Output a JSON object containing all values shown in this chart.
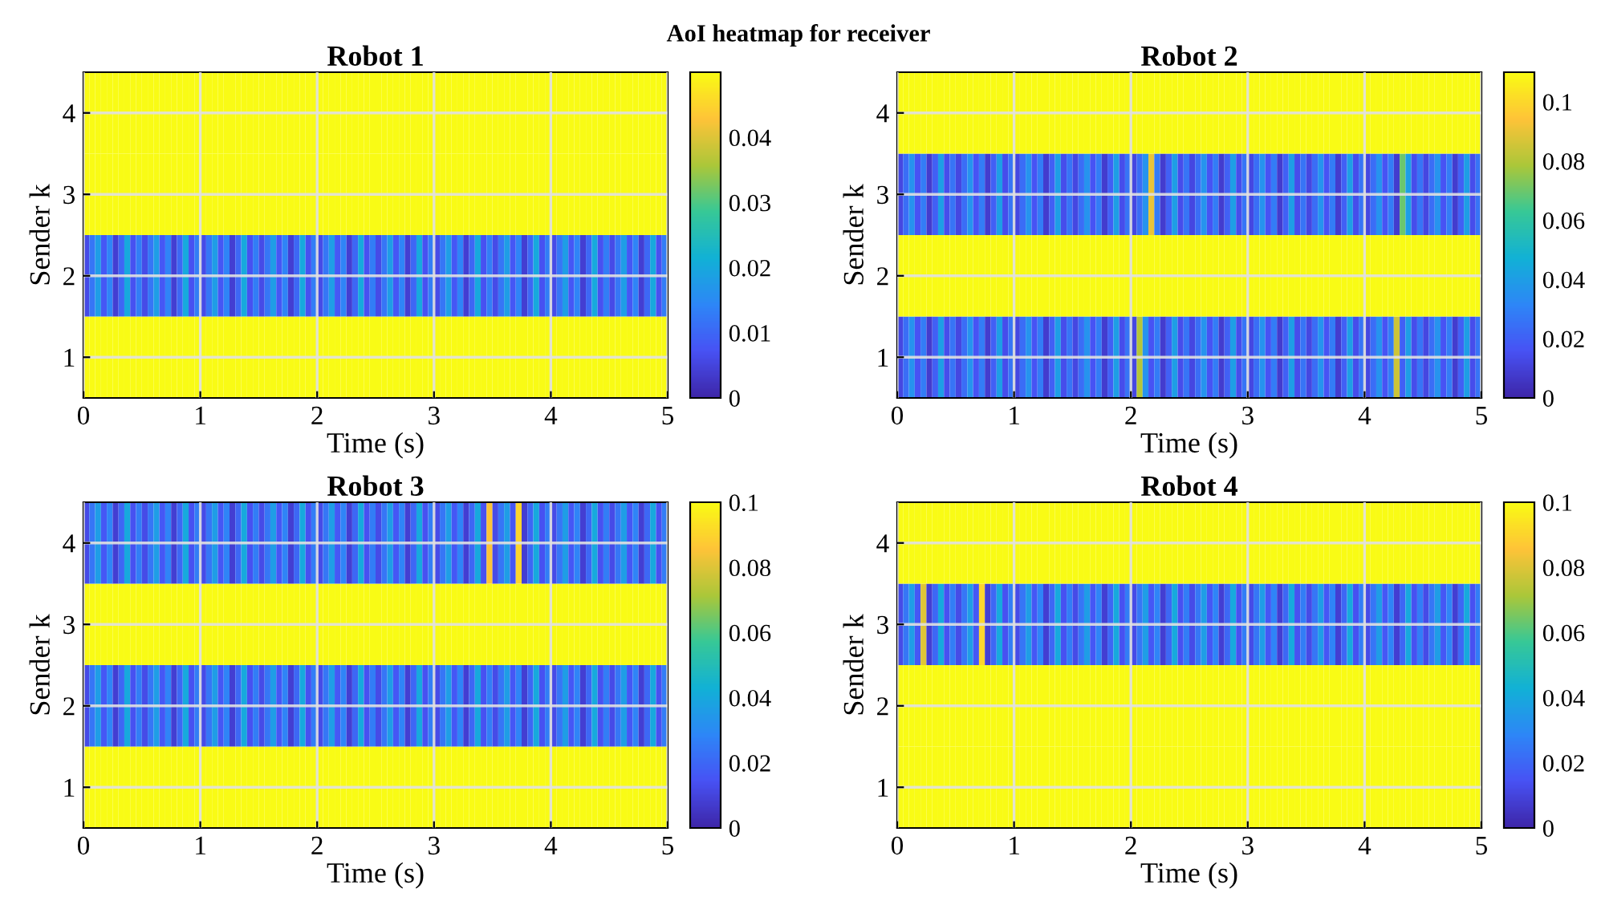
{
  "chart_data": [
    {
      "type": "heatmap",
      "annotations": [
        "AoI heatmap for receiver"
      ],
      "title": "Robot 1",
      "xlabel": "Time (s)",
      "ylabel": "Sender k",
      "xlim": [
        0,
        5
      ],
      "xticks": [
        0,
        1,
        2,
        3,
        4,
        5
      ],
      "grid": true,
      "clim": [
        0,
        0.05
      ],
      "cticks": [
        0,
        0.01,
        0.02,
        0.03,
        0.04
      ],
      "x": [
        0.025,
        0.075,
        0.125,
        0.175,
        0.225,
        0.275,
        0.325,
        0.375,
        0.425,
        0.475,
        0.525,
        0.575,
        0.625,
        0.675,
        0.725,
        0.775,
        0.825,
        0.875,
        0.925,
        0.975,
        1.025,
        1.075,
        1.125,
        1.175,
        1.225,
        1.275,
        1.325,
        1.375,
        1.425,
        1.475,
        1.525,
        1.575,
        1.625,
        1.675,
        1.725,
        1.775,
        1.825,
        1.875,
        1.925,
        1.975,
        2.025,
        2.075,
        2.125,
        2.175,
        2.225,
        2.275,
        2.325,
        2.375,
        2.425,
        2.475,
        2.525,
        2.575,
        2.625,
        2.675,
        2.725,
        2.775,
        2.825,
        2.875,
        2.925,
        2.975,
        3.025,
        3.075,
        3.125,
        3.175,
        3.225,
        3.275,
        3.325,
        3.375,
        3.425,
        3.475,
        3.525,
        3.575,
        3.625,
        3.675,
        3.725,
        3.775,
        3.825,
        3.875,
        3.925,
        3.975,
        4.025,
        4.075,
        4.125,
        4.175,
        4.225,
        4.275,
        4.325,
        4.375,
        4.425,
        4.475,
        4.525,
        4.575,
        4.625,
        4.675,
        4.725,
        4.775,
        4.825,
        4.875,
        4.925,
        4.975
      ],
      "y_categories": [
        "4",
        "3",
        "2",
        "1"
      ],
      "cells": [
        [
          0.05,
          0.05,
          0.05,
          0.05,
          0.05,
          0.05,
          0.05,
          0.05,
          0.05,
          0.05,
          0.05,
          0.05,
          0.05,
          0.05,
          0.05,
          0.05,
          0.05,
          0.05,
          0.05,
          0.05,
          0.05,
          0.05,
          0.05,
          0.05,
          0.05,
          0.05,
          0.05,
          0.05,
          0.05,
          0.05,
          0.05,
          0.05,
          0.05,
          0.05,
          0.05,
          0.05,
          0.05,
          0.05,
          0.05,
          0.05,
          0.05,
          0.05,
          0.05,
          0.05,
          0.05,
          0.05,
          0.05,
          0.05,
          0.05,
          0.05,
          0.05,
          0.05,
          0.05,
          0.05,
          0.05,
          0.05,
          0.05,
          0.05,
          0.05,
          0.05,
          0.05,
          0.05,
          0.05,
          0.05,
          0.05,
          0.05,
          0.05,
          0.05,
          0.05,
          0.05,
          0.05,
          0.05,
          0.05,
          0.05,
          0.05,
          0.05,
          0.05,
          0.05,
          0.05,
          0.05,
          0.05,
          0.05,
          0.05,
          0.05,
          0.05,
          0.05,
          0.05,
          0.05,
          0.05,
          0.05,
          0.05,
          0.05,
          0.05,
          0.05,
          0.05,
          0.05,
          0.05,
          0.05,
          0.05,
          0.05
        ],
        [
          0.05,
          0.05,
          0.05,
          0.05,
          0.05,
          0.05,
          0.05,
          0.05,
          0.05,
          0.05,
          0.05,
          0.05,
          0.05,
          0.05,
          0.05,
          0.05,
          0.05,
          0.05,
          0.05,
          0.05,
          0.05,
          0.05,
          0.05,
          0.05,
          0.05,
          0.05,
          0.05,
          0.05,
          0.05,
          0.05,
          0.05,
          0.05,
          0.05,
          0.05,
          0.05,
          0.05,
          0.05,
          0.05,
          0.05,
          0.05,
          0.05,
          0.05,
          0.05,
          0.05,
          0.05,
          0.05,
          0.05,
          0.05,
          0.05,
          0.05,
          0.05,
          0.05,
          0.05,
          0.05,
          0.05,
          0.05,
          0.05,
          0.05,
          0.05,
          0.05,
          0.05,
          0.05,
          0.05,
          0.05,
          0.05,
          0.05,
          0.05,
          0.05,
          0.05,
          0.05,
          0.05,
          0.05,
          0.05,
          0.05,
          0.05,
          0.05,
          0.05,
          0.05,
          0.05,
          0.05,
          0.05,
          0.05,
          0.05,
          0.05,
          0.05,
          0.05,
          0.05,
          0.05,
          0.05,
          0.05,
          0.05,
          0.05,
          0.05,
          0.05,
          0.05,
          0.05,
          0.05,
          0.05,
          0.05,
          0.05
        ],
        [
          0.006,
          0.012,
          0.018,
          0.008,
          0.014,
          0.004,
          0.01,
          0.02,
          0.007,
          0.013,
          0.006,
          0.012,
          0.018,
          0.008,
          0.014,
          0.004,
          0.01,
          0.02,
          0.007,
          0.013,
          0.006,
          0.012,
          0.018,
          0.008,
          0.014,
          0.004,
          0.01,
          0.02,
          0.007,
          0.013,
          0.006,
          0.012,
          0.018,
          0.008,
          0.014,
          0.004,
          0.01,
          0.02,
          0.007,
          0.013,
          0.006,
          0.012,
          0.018,
          0.008,
          0.014,
          0.004,
          0.01,
          0.02,
          0.007,
          0.013,
          0.006,
          0.012,
          0.018,
          0.008,
          0.014,
          0.004,
          0.01,
          0.02,
          0.007,
          0.013,
          0.006,
          0.012,
          0.018,
          0.008,
          0.014,
          0.004,
          0.01,
          0.02,
          0.007,
          0.013,
          0.006,
          0.012,
          0.018,
          0.008,
          0.014,
          0.004,
          0.01,
          0.02,
          0.007,
          0.013,
          0.006,
          0.012,
          0.018,
          0.008,
          0.014,
          0.004,
          0.01,
          0.02,
          0.007,
          0.013,
          0.006,
          0.012,
          0.018,
          0.008,
          0.014,
          0.004,
          0.01,
          0.02,
          0.007,
          0.013
        ],
        [
          0.05,
          0.05,
          0.05,
          0.05,
          0.05,
          0.05,
          0.05,
          0.05,
          0.05,
          0.05,
          0.05,
          0.05,
          0.05,
          0.05,
          0.05,
          0.05,
          0.05,
          0.05,
          0.05,
          0.05,
          0.05,
          0.05,
          0.05,
          0.05,
          0.05,
          0.05,
          0.05,
          0.05,
          0.05,
          0.05,
          0.05,
          0.05,
          0.05,
          0.05,
          0.05,
          0.05,
          0.05,
          0.05,
          0.05,
          0.05,
          0.05,
          0.05,
          0.05,
          0.05,
          0.05,
          0.05,
          0.05,
          0.05,
          0.05,
          0.05,
          0.05,
          0.05,
          0.05,
          0.05,
          0.05,
          0.05,
          0.05,
          0.05,
          0.05,
          0.05,
          0.05,
          0.05,
          0.05,
          0.05,
          0.05,
          0.05,
          0.05,
          0.05,
          0.05,
          0.05,
          0.05,
          0.05,
          0.05,
          0.05,
          0.05,
          0.05,
          0.05,
          0.05,
          0.05,
          0.05,
          0.05,
          0.05,
          0.05,
          0.05,
          0.05,
          0.05,
          0.05,
          0.05,
          0.05,
          0.05,
          0.05,
          0.05,
          0.05,
          0.05,
          0.05,
          0.05,
          0.05,
          0.05,
          0.05,
          0.05
        ]
      ]
    },
    {
      "type": "heatmap",
      "title": "Robot 2",
      "xlabel": "Time (s)",
      "ylabel": "Sender k",
      "xlim": [
        0,
        5
      ],
      "xticks": [
        0,
        1,
        2,
        3,
        4,
        5
      ],
      "grid": true,
      "clim": [
        0,
        0.11
      ],
      "cticks": [
        0,
        0.02,
        0.04,
        0.06,
        0.08,
        0.1
      ],
      "x": [
        0.025,
        0.075,
        0.125,
        0.175,
        0.225,
        0.275,
        0.325,
        0.375,
        0.425,
        0.475,
        0.525,
        0.575,
        0.625,
        0.675,
        0.725,
        0.775,
        0.825,
        0.875,
        0.925,
        0.975,
        1.025,
        1.075,
        1.125,
        1.175,
        1.225,
        1.275,
        1.325,
        1.375,
        1.425,
        1.475,
        1.525,
        1.575,
        1.625,
        1.675,
        1.725,
        1.775,
        1.825,
        1.875,
        1.925,
        1.975,
        2.025,
        2.075,
        2.125,
        2.175,
        2.225,
        2.275,
        2.325,
        2.375,
        2.425,
        2.475,
        2.525,
        2.575,
        2.625,
        2.675,
        2.725,
        2.775,
        2.825,
        2.875,
        2.925,
        2.975,
        3.025,
        3.075,
        3.125,
        3.175,
        3.225,
        3.275,
        3.325,
        3.375,
        3.425,
        3.475,
        3.525,
        3.575,
        3.625,
        3.675,
        3.725,
        3.775,
        3.825,
        3.875,
        3.925,
        3.975,
        4.025,
        4.075,
        4.125,
        4.175,
        4.225,
        4.275,
        4.325,
        4.375,
        4.425,
        4.475,
        4.525,
        4.575,
        4.625,
        4.675,
        4.725,
        4.775,
        4.825,
        4.875,
        4.925,
        4.975
      ],
      "y_categories": [
        "4",
        "3",
        "2",
        "1"
      ],
      "cells": [
        [
          0.11,
          0.11,
          0.11,
          0.11,
          0.11,
          0.11,
          0.11,
          0.11,
          0.11,
          0.11,
          0.11,
          0.11,
          0.11,
          0.11,
          0.11,
          0.11,
          0.11,
          0.11,
          0.11,
          0.11,
          0.11,
          0.11,
          0.11,
          0.11,
          0.11,
          0.11,
          0.11,
          0.11,
          0.11,
          0.11,
          0.11,
          0.11,
          0.11,
          0.11,
          0.11,
          0.11,
          0.11,
          0.11,
          0.11,
          0.11,
          0.11,
          0.11,
          0.11,
          0.11,
          0.11,
          0.11,
          0.11,
          0.11,
          0.11,
          0.11,
          0.11,
          0.11,
          0.11,
          0.11,
          0.11,
          0.11,
          0.11,
          0.11,
          0.11,
          0.11,
          0.11,
          0.11,
          0.11,
          0.11,
          0.11,
          0.11,
          0.11,
          0.11,
          0.11,
          0.11,
          0.11,
          0.11,
          0.11,
          0.11,
          0.11,
          0.11,
          0.11,
          0.11,
          0.11,
          0.11,
          0.11,
          0.11,
          0.11,
          0.11,
          0.11,
          0.11,
          0.11,
          0.11,
          0.11,
          0.11,
          0.11,
          0.11,
          0.11,
          0.11,
          0.11,
          0.11,
          0.11,
          0.11,
          0.11,
          0.11
        ],
        [
          0.012,
          0.024,
          0.036,
          0.016,
          0.028,
          0.008,
          0.02,
          0.04,
          0.014,
          0.026,
          0.012,
          0.024,
          0.036,
          0.016,
          0.028,
          0.008,
          0.02,
          0.04,
          0.014,
          0.026,
          0.012,
          0.024,
          0.036,
          0.016,
          0.028,
          0.008,
          0.02,
          0.04,
          0.014,
          0.026,
          0.012,
          0.024,
          0.036,
          0.016,
          0.028,
          0.008,
          0.02,
          0.04,
          0.014,
          0.026,
          0.012,
          0.024,
          0.036,
          0.09,
          0.028,
          0.008,
          0.02,
          0.04,
          0.014,
          0.026,
          0.012,
          0.024,
          0.036,
          0.016,
          0.028,
          0.008,
          0.02,
          0.04,
          0.014,
          0.026,
          0.012,
          0.024,
          0.036,
          0.016,
          0.028,
          0.008,
          0.02,
          0.04,
          0.014,
          0.026,
          0.012,
          0.024,
          0.036,
          0.016,
          0.028,
          0.008,
          0.02,
          0.04,
          0.014,
          0.026,
          0.012,
          0.024,
          0.036,
          0.016,
          0.028,
          0.008,
          0.07,
          0.04,
          0.014,
          0.026,
          0.012,
          0.024,
          0.036,
          0.016,
          0.028,
          0.008,
          0.02,
          0.04,
          0.014,
          0.026
        ],
        [
          0.11,
          0.11,
          0.11,
          0.11,
          0.11,
          0.11,
          0.11,
          0.11,
          0.11,
          0.11,
          0.11,
          0.11,
          0.11,
          0.11,
          0.11,
          0.11,
          0.11,
          0.11,
          0.11,
          0.11,
          0.11,
          0.11,
          0.11,
          0.11,
          0.11,
          0.11,
          0.11,
          0.11,
          0.11,
          0.11,
          0.11,
          0.11,
          0.11,
          0.11,
          0.11,
          0.11,
          0.11,
          0.11,
          0.11,
          0.11,
          0.11,
          0.11,
          0.11,
          0.11,
          0.11,
          0.11,
          0.11,
          0.11,
          0.11,
          0.11,
          0.11,
          0.11,
          0.11,
          0.11,
          0.11,
          0.11,
          0.11,
          0.11,
          0.11,
          0.11,
          0.11,
          0.11,
          0.11,
          0.11,
          0.11,
          0.11,
          0.11,
          0.11,
          0.11,
          0.11,
          0.11,
          0.11,
          0.11,
          0.11,
          0.11,
          0.11,
          0.11,
          0.11,
          0.11,
          0.11,
          0.11,
          0.11,
          0.11,
          0.11,
          0.11,
          0.11,
          0.11,
          0.11,
          0.11,
          0.11,
          0.11,
          0.11,
          0.11,
          0.11,
          0.11,
          0.11,
          0.11,
          0.11,
          0.11,
          0.11
        ],
        [
          0.012,
          0.024,
          0.036,
          0.016,
          0.028,
          0.008,
          0.02,
          0.04,
          0.014,
          0.026,
          0.012,
          0.024,
          0.036,
          0.016,
          0.028,
          0.008,
          0.02,
          0.04,
          0.014,
          0.026,
          0.012,
          0.024,
          0.036,
          0.016,
          0.028,
          0.008,
          0.02,
          0.04,
          0.014,
          0.026,
          0.012,
          0.024,
          0.036,
          0.016,
          0.028,
          0.008,
          0.02,
          0.04,
          0.014,
          0.026,
          0.012,
          0.08,
          0.036,
          0.016,
          0.028,
          0.008,
          0.02,
          0.04,
          0.014,
          0.026,
          0.012,
          0.024,
          0.036,
          0.016,
          0.028,
          0.008,
          0.02,
          0.04,
          0.014,
          0.026,
          0.012,
          0.024,
          0.036,
          0.016,
          0.028,
          0.008,
          0.02,
          0.04,
          0.014,
          0.026,
          0.012,
          0.024,
          0.036,
          0.016,
          0.028,
          0.008,
          0.02,
          0.04,
          0.014,
          0.026,
          0.012,
          0.024,
          0.036,
          0.016,
          0.028,
          0.085,
          0.02,
          0.04,
          0.014,
          0.026,
          0.012,
          0.024,
          0.036,
          0.016,
          0.028,
          0.008,
          0.02,
          0.04,
          0.014,
          0.026
        ]
      ]
    },
    {
      "type": "heatmap",
      "title": "Robot 3",
      "xlabel": "Time (s)",
      "ylabel": "Sender k",
      "xlim": [
        0,
        5
      ],
      "xticks": [
        0,
        1,
        2,
        3,
        4,
        5
      ],
      "grid": true,
      "clim": [
        0,
        0.1
      ],
      "cticks": [
        0,
        0.02,
        0.04,
        0.06,
        0.08,
        0.1
      ],
      "x": [
        0.025,
        0.075,
        0.125,
        0.175,
        0.225,
        0.275,
        0.325,
        0.375,
        0.425,
        0.475,
        0.525,
        0.575,
        0.625,
        0.675,
        0.725,
        0.775,
        0.825,
        0.875,
        0.925,
        0.975,
        1.025,
        1.075,
        1.125,
        1.175,
        1.225,
        1.275,
        1.325,
        1.375,
        1.425,
        1.475,
        1.525,
        1.575,
        1.625,
        1.675,
        1.725,
        1.775,
        1.825,
        1.875,
        1.925,
        1.975,
        2.025,
        2.075,
        2.125,
        2.175,
        2.225,
        2.275,
        2.325,
        2.375,
        2.425,
        2.475,
        2.525,
        2.575,
        2.625,
        2.675,
        2.725,
        2.775,
        2.825,
        2.875,
        2.925,
        2.975,
        3.025,
        3.075,
        3.125,
        3.175,
        3.225,
        3.275,
        3.325,
        3.375,
        3.425,
        3.475,
        3.525,
        3.575,
        3.625,
        3.675,
        3.725,
        3.775,
        3.825,
        3.875,
        3.925,
        3.975,
        4.025,
        4.075,
        4.125,
        4.175,
        4.225,
        4.275,
        4.325,
        4.375,
        4.425,
        4.475,
        4.525,
        4.575,
        4.625,
        4.675,
        4.725,
        4.775,
        4.825,
        4.875,
        4.925,
        4.975
      ],
      "y_categories": [
        "4",
        "3",
        "2",
        "1"
      ],
      "cells": [
        [
          0.012,
          0.024,
          0.036,
          0.016,
          0.028,
          0.008,
          0.02,
          0.04,
          0.014,
          0.026,
          0.012,
          0.024,
          0.036,
          0.016,
          0.028,
          0.008,
          0.02,
          0.04,
          0.014,
          0.026,
          0.012,
          0.024,
          0.036,
          0.016,
          0.028,
          0.008,
          0.02,
          0.04,
          0.014,
          0.026,
          0.012,
          0.024,
          0.036,
          0.016,
          0.028,
          0.008,
          0.02,
          0.04,
          0.014,
          0.026,
          0.012,
          0.024,
          0.036,
          0.016,
          0.028,
          0.008,
          0.02,
          0.04,
          0.014,
          0.026,
          0.012,
          0.024,
          0.036,
          0.016,
          0.028,
          0.008,
          0.02,
          0.04,
          0.014,
          0.026,
          0.012,
          0.024,
          0.036,
          0.016,
          0.028,
          0.008,
          0.02,
          0.04,
          0.014,
          0.085,
          0.012,
          0.024,
          0.036,
          0.016,
          0.09,
          0.008,
          0.02,
          0.04,
          0.014,
          0.026,
          0.012,
          0.024,
          0.036,
          0.016,
          0.028,
          0.008,
          0.02,
          0.04,
          0.014,
          0.026,
          0.012,
          0.024,
          0.036,
          0.016,
          0.028,
          0.008,
          0.02,
          0.04,
          0.014,
          0.026
        ],
        [
          0.1,
          0.1,
          0.1,
          0.1,
          0.1,
          0.1,
          0.1,
          0.1,
          0.1,
          0.1,
          0.1,
          0.1,
          0.1,
          0.1,
          0.1,
          0.1,
          0.1,
          0.1,
          0.1,
          0.1,
          0.1,
          0.1,
          0.1,
          0.1,
          0.1,
          0.1,
          0.1,
          0.1,
          0.1,
          0.1,
          0.1,
          0.1,
          0.1,
          0.1,
          0.1,
          0.1,
          0.1,
          0.1,
          0.1,
          0.1,
          0.1,
          0.1,
          0.1,
          0.1,
          0.1,
          0.1,
          0.1,
          0.1,
          0.1,
          0.1,
          0.1,
          0.1,
          0.1,
          0.1,
          0.1,
          0.1,
          0.1,
          0.1,
          0.1,
          0.1,
          0.1,
          0.1,
          0.1,
          0.1,
          0.1,
          0.1,
          0.1,
          0.1,
          0.1,
          0.1,
          0.1,
          0.1,
          0.1,
          0.1,
          0.1,
          0.1,
          0.1,
          0.1,
          0.1,
          0.1,
          0.1,
          0.1,
          0.1,
          0.1,
          0.1,
          0.1,
          0.1,
          0.1,
          0.1,
          0.1,
          0.1,
          0.1,
          0.1,
          0.1,
          0.1,
          0.1,
          0.1,
          0.1,
          0.1,
          0.1
        ],
        [
          0.012,
          0.024,
          0.036,
          0.016,
          0.028,
          0.008,
          0.02,
          0.04,
          0.014,
          0.026,
          0.012,
          0.024,
          0.036,
          0.016,
          0.028,
          0.008,
          0.02,
          0.04,
          0.014,
          0.026,
          0.012,
          0.024,
          0.036,
          0.016,
          0.028,
          0.008,
          0.02,
          0.04,
          0.014,
          0.026,
          0.012,
          0.024,
          0.036,
          0.016,
          0.028,
          0.008,
          0.02,
          0.04,
          0.014,
          0.026,
          0.012,
          0.024,
          0.036,
          0.016,
          0.028,
          0.008,
          0.02,
          0.04,
          0.014,
          0.026,
          0.012,
          0.024,
          0.036,
          0.016,
          0.028,
          0.008,
          0.02,
          0.04,
          0.014,
          0.026,
          0.012,
          0.024,
          0.036,
          0.016,
          0.028,
          0.008,
          0.02,
          0.04,
          0.014,
          0.026,
          0.012,
          0.024,
          0.036,
          0.016,
          0.028,
          0.008,
          0.02,
          0.04,
          0.014,
          0.026,
          0.012,
          0.024,
          0.036,
          0.016,
          0.028,
          0.008,
          0.02,
          0.04,
          0.014,
          0.026,
          0.012,
          0.024,
          0.036,
          0.016,
          0.028,
          0.008,
          0.02,
          0.04,
          0.014,
          0.026
        ],
        [
          0.1,
          0.1,
          0.1,
          0.1,
          0.1,
          0.1,
          0.1,
          0.1,
          0.1,
          0.1,
          0.1,
          0.1,
          0.1,
          0.1,
          0.1,
          0.1,
          0.1,
          0.1,
          0.1,
          0.1,
          0.1,
          0.1,
          0.1,
          0.1,
          0.1,
          0.1,
          0.1,
          0.1,
          0.1,
          0.1,
          0.1,
          0.1,
          0.1,
          0.1,
          0.1,
          0.1,
          0.1,
          0.1,
          0.1,
          0.1,
          0.1,
          0.1,
          0.1,
          0.1,
          0.1,
          0.1,
          0.1,
          0.1,
          0.1,
          0.1,
          0.1,
          0.1,
          0.1,
          0.1,
          0.1,
          0.1,
          0.1,
          0.1,
          0.1,
          0.1,
          0.1,
          0.1,
          0.1,
          0.1,
          0.1,
          0.1,
          0.1,
          0.1,
          0.1,
          0.1,
          0.1,
          0.1,
          0.1,
          0.1,
          0.1,
          0.1,
          0.1,
          0.1,
          0.1,
          0.1,
          0.1,
          0.1,
          0.1,
          0.1,
          0.1,
          0.1,
          0.1,
          0.1,
          0.1,
          0.1,
          0.1,
          0.1,
          0.1,
          0.1,
          0.1,
          0.1,
          0.1,
          0.1,
          0.1,
          0.1
        ]
      ]
    },
    {
      "type": "heatmap",
      "title": "Robot 4",
      "xlabel": "Time (s)",
      "ylabel": "Sender k",
      "xlim": [
        0,
        5
      ],
      "xticks": [
        0,
        1,
        2,
        3,
        4,
        5
      ],
      "grid": true,
      "clim": [
        0,
        0.1
      ],
      "cticks": [
        0,
        0.02,
        0.04,
        0.06,
        0.08,
        0.1
      ],
      "x": [
        0.025,
        0.075,
        0.125,
        0.175,
        0.225,
        0.275,
        0.325,
        0.375,
        0.425,
        0.475,
        0.525,
        0.575,
        0.625,
        0.675,
        0.725,
        0.775,
        0.825,
        0.875,
        0.925,
        0.975,
        1.025,
        1.075,
        1.125,
        1.175,
        1.225,
        1.275,
        1.325,
        1.375,
        1.425,
        1.475,
        1.525,
        1.575,
        1.625,
        1.675,
        1.725,
        1.775,
        1.825,
        1.875,
        1.925,
        1.975,
        2.025,
        2.075,
        2.125,
        2.175,
        2.225,
        2.275,
        2.325,
        2.375,
        2.425,
        2.475,
        2.525,
        2.575,
        2.625,
        2.675,
        2.725,
        2.775,
        2.825,
        2.875,
        2.925,
        2.975,
        3.025,
        3.075,
        3.125,
        3.175,
        3.225,
        3.275,
        3.325,
        3.375,
        3.425,
        3.475,
        3.525,
        3.575,
        3.625,
        3.675,
        3.725,
        3.775,
        3.825,
        3.875,
        3.925,
        3.975,
        4.025,
        4.075,
        4.125,
        4.175,
        4.225,
        4.275,
        4.325,
        4.375,
        4.425,
        4.475,
        4.525,
        4.575,
        4.625,
        4.675,
        4.725,
        4.775,
        4.825,
        4.875,
        4.925,
        4.975
      ],
      "y_categories": [
        "4",
        "3",
        "2",
        "1"
      ],
      "cells": [
        [
          0.1,
          0.1,
          0.1,
          0.1,
          0.1,
          0.1,
          0.1,
          0.1,
          0.1,
          0.1,
          0.1,
          0.1,
          0.1,
          0.1,
          0.1,
          0.1,
          0.1,
          0.1,
          0.1,
          0.1,
          0.1,
          0.1,
          0.1,
          0.1,
          0.1,
          0.1,
          0.1,
          0.1,
          0.1,
          0.1,
          0.1,
          0.1,
          0.1,
          0.1,
          0.1,
          0.1,
          0.1,
          0.1,
          0.1,
          0.1,
          0.1,
          0.1,
          0.1,
          0.1,
          0.1,
          0.1,
          0.1,
          0.1,
          0.1,
          0.1,
          0.1,
          0.1,
          0.1,
          0.1,
          0.1,
          0.1,
          0.1,
          0.1,
          0.1,
          0.1,
          0.1,
          0.1,
          0.1,
          0.1,
          0.1,
          0.1,
          0.1,
          0.1,
          0.1,
          0.1,
          0.1,
          0.1,
          0.1,
          0.1,
          0.1,
          0.1,
          0.1,
          0.1,
          0.1,
          0.1,
          0.1,
          0.1,
          0.1,
          0.1,
          0.1,
          0.1,
          0.1,
          0.1,
          0.1,
          0.1,
          0.1,
          0.1,
          0.1,
          0.1,
          0.1,
          0.1,
          0.1,
          0.1,
          0.1,
          0.1
        ],
        [
          0.012,
          0.024,
          0.036,
          0.016,
          0.08,
          0.008,
          0.02,
          0.04,
          0.014,
          0.026,
          0.012,
          0.024,
          0.036,
          0.016,
          0.09,
          0.008,
          0.02,
          0.04,
          0.014,
          0.026,
          0.012,
          0.024,
          0.036,
          0.016,
          0.028,
          0.008,
          0.02,
          0.04,
          0.014,
          0.026,
          0.012,
          0.024,
          0.036,
          0.016,
          0.028,
          0.008,
          0.02,
          0.04,
          0.014,
          0.026,
          0.012,
          0.024,
          0.036,
          0.016,
          0.028,
          0.008,
          0.02,
          0.04,
          0.014,
          0.026,
          0.012,
          0.024,
          0.036,
          0.016,
          0.028,
          0.008,
          0.02,
          0.04,
          0.014,
          0.026,
          0.012,
          0.024,
          0.036,
          0.016,
          0.028,
          0.008,
          0.02,
          0.04,
          0.014,
          0.026,
          0.012,
          0.024,
          0.036,
          0.016,
          0.028,
          0.008,
          0.02,
          0.04,
          0.014,
          0.026,
          0.012,
          0.024,
          0.036,
          0.016,
          0.028,
          0.008,
          0.02,
          0.04,
          0.014,
          0.026,
          0.012,
          0.024,
          0.036,
          0.016,
          0.028,
          0.008,
          0.02,
          0.04,
          0.014,
          0.026
        ],
        [
          0.1,
          0.1,
          0.1,
          0.1,
          0.1,
          0.1,
          0.1,
          0.1,
          0.1,
          0.1,
          0.1,
          0.1,
          0.1,
          0.1,
          0.1,
          0.1,
          0.1,
          0.1,
          0.1,
          0.1,
          0.1,
          0.1,
          0.1,
          0.1,
          0.1,
          0.1,
          0.1,
          0.1,
          0.1,
          0.1,
          0.1,
          0.1,
          0.1,
          0.1,
          0.1,
          0.1,
          0.1,
          0.1,
          0.1,
          0.1,
          0.1,
          0.1,
          0.1,
          0.1,
          0.1,
          0.1,
          0.1,
          0.1,
          0.1,
          0.1,
          0.1,
          0.1,
          0.1,
          0.1,
          0.1,
          0.1,
          0.1,
          0.1,
          0.1,
          0.1,
          0.1,
          0.1,
          0.1,
          0.1,
          0.1,
          0.1,
          0.1,
          0.1,
          0.1,
          0.1,
          0.1,
          0.1,
          0.1,
          0.1,
          0.1,
          0.1,
          0.1,
          0.1,
          0.1,
          0.1,
          0.1,
          0.1,
          0.1,
          0.1,
          0.1,
          0.1,
          0.1,
          0.1,
          0.1,
          0.1,
          0.1,
          0.1,
          0.1,
          0.1,
          0.1,
          0.1,
          0.1,
          0.1,
          0.1,
          0.1
        ],
        [
          0.1,
          0.1,
          0.1,
          0.1,
          0.1,
          0.1,
          0.1,
          0.1,
          0.1,
          0.1,
          0.1,
          0.1,
          0.1,
          0.1,
          0.1,
          0.1,
          0.1,
          0.1,
          0.1,
          0.1,
          0.1,
          0.1,
          0.1,
          0.1,
          0.1,
          0.1,
          0.1,
          0.1,
          0.1,
          0.1,
          0.1,
          0.1,
          0.1,
          0.1,
          0.1,
          0.1,
          0.1,
          0.1,
          0.1,
          0.1,
          0.1,
          0.1,
          0.1,
          0.1,
          0.1,
          0.1,
          0.1,
          0.1,
          0.1,
          0.1,
          0.1,
          0.1,
          0.1,
          0.1,
          0.1,
          0.1,
          0.1,
          0.1,
          0.1,
          0.1,
          0.1,
          0.1,
          0.1,
          0.1,
          0.1,
          0.1,
          0.1,
          0.1,
          0.1,
          0.1,
          0.1,
          0.1,
          0.1,
          0.1,
          0.1,
          0.1,
          0.1,
          0.1,
          0.1,
          0.1,
          0.1,
          0.1,
          0.1,
          0.1,
          0.1,
          0.1,
          0.1,
          0.1,
          0.1,
          0.1,
          0.1,
          0.1,
          0.1,
          0.1,
          0.1,
          0.1,
          0.1,
          0.1,
          0.1,
          0.1
        ]
      ]
    }
  ]
}
